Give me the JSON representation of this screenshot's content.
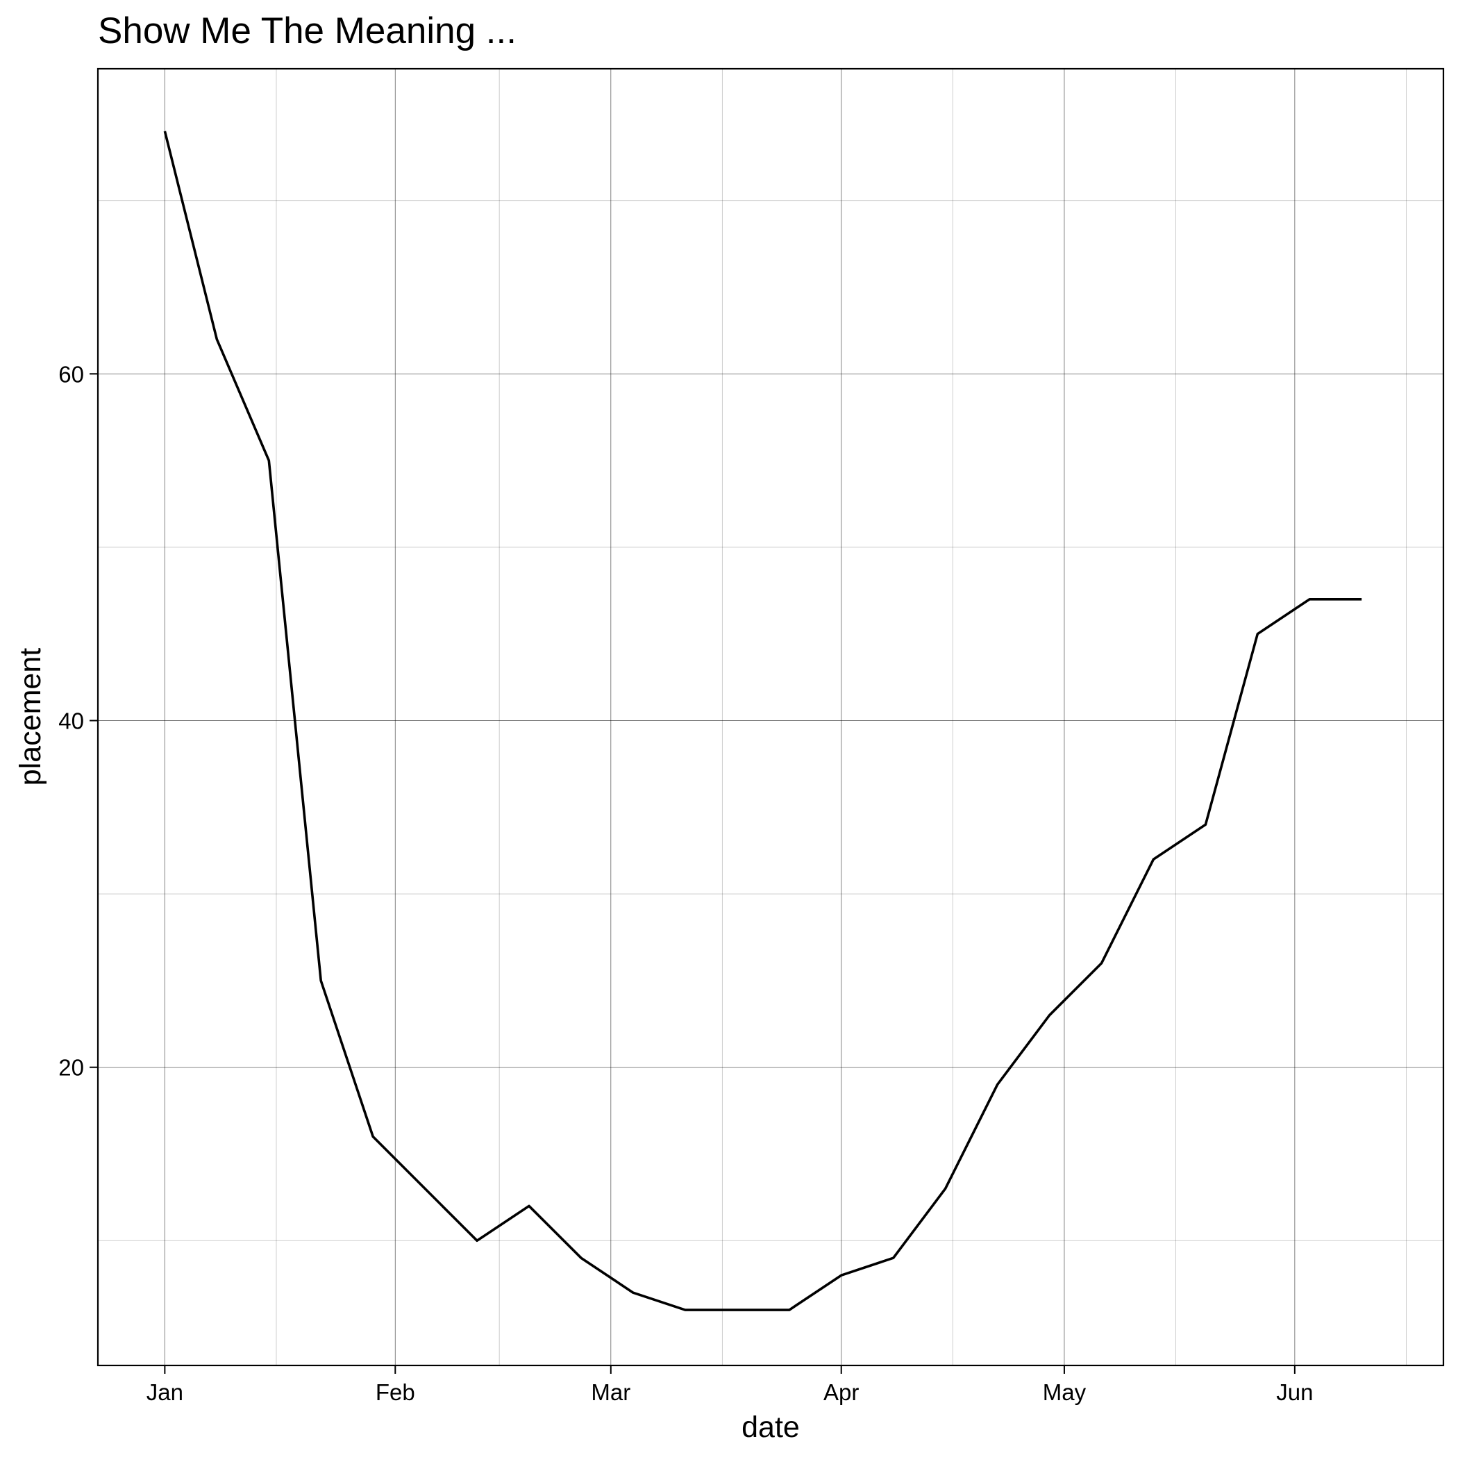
{
  "chart_data": {
    "type": "line",
    "title": "Show Me The Meaning ...",
    "xlabel": "date",
    "ylabel": "placement",
    "x_kind": "date",
    "x_tick_labels": [
      "Jan",
      "Feb",
      "Mar",
      "Apr",
      "May",
      "Jun"
    ],
    "x_tick_dates": [
      "2000-01-01",
      "2000-02-01",
      "2000-03-01",
      "2000-04-01",
      "2000-05-01",
      "2000-06-01"
    ],
    "x_minor_dates": [
      "2000-01-16",
      "2000-02-15",
      "2000-03-16",
      "2000-04-16",
      "2000-05-16",
      "2000-06-16"
    ],
    "xlim": [
      "1999-12-23",
      "2000-06-21"
    ],
    "y_ticks": [
      20,
      40,
      60
    ],
    "y_tick_labels": [
      "20",
      "40",
      "60"
    ],
    "y_minor_ticks": [
      10,
      30,
      50,
      70
    ],
    "ylim": [
      2.8,
      77.6
    ],
    "grid": true,
    "line_color": "#000000",
    "x": [
      "2000-01-01",
      "2000-01-08",
      "2000-01-15",
      "2000-01-22",
      "2000-01-29",
      "2000-02-05",
      "2000-02-12",
      "2000-02-19",
      "2000-02-26",
      "2000-03-04",
      "2000-03-11",
      "2000-03-18",
      "2000-03-25",
      "2000-04-01",
      "2000-04-08",
      "2000-04-15",
      "2000-04-22",
      "2000-04-29",
      "2000-05-06",
      "2000-05-13",
      "2000-05-20",
      "2000-05-27",
      "2000-06-03",
      "2000-06-10"
    ],
    "values": [
      74,
      62,
      55,
      25,
      16,
      13,
      10,
      12,
      9,
      7,
      6,
      6,
      6,
      8,
      9,
      13,
      19,
      23,
      26,
      32,
      34,
      45,
      47,
      47
    ],
    "y": [
      74,
      62,
      55,
      25,
      16,
      13,
      10,
      12,
      9,
      7,
      6,
      6,
      6,
      8,
      9,
      13,
      19,
      23,
      26,
      32,
      34,
      45,
      47,
      47
    ]
  }
}
